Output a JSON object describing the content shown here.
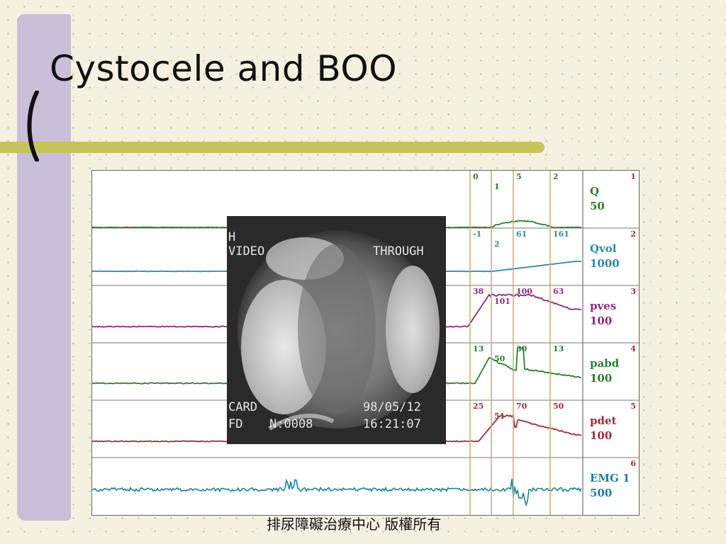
{
  "slide": {
    "title": "Cystocele and BOO",
    "footer": "排尿障礙治療中心 版權所有",
    "colors": {
      "background": "#f4f1e0",
      "accent_bar": "#c9bfd9",
      "title_rule": "#c6c45a"
    }
  },
  "video": {
    "top_left": "H",
    "mode_left": "VIDEO",
    "mode_right": "THROUGH",
    "card": "CARD",
    "fd": "FD",
    "counter": "N:0008",
    "date": "98/05/12",
    "time": "16:21:07"
  },
  "chart_data": {
    "type": "line",
    "title": "",
    "channels": [
      {
        "index": "1",
        "name": "Q",
        "scale": "50",
        "color": "#2e7d32",
        "markers": [
          "0",
          "1",
          "5",
          "2"
        ]
      },
      {
        "index": "2",
        "name": "Qvol",
        "scale": "1000",
        "color": "#2b8aa8",
        "markers": [
          "-1",
          "2",
          "61",
          "161"
        ]
      },
      {
        "index": "3",
        "name": "pves",
        "scale": "100",
        "color": "#8e2a7e",
        "markers": [
          "38",
          "101",
          "100",
          "63"
        ]
      },
      {
        "index": "4",
        "name": "pabd",
        "scale": "100",
        "color": "#2e7d32",
        "markers": [
          "13",
          "50",
          "30",
          "13"
        ]
      },
      {
        "index": "5",
        "name": "pdet",
        "scale": "100",
        "color": "#a02c3a",
        "markers": [
          "25",
          "51",
          "70",
          "50"
        ]
      },
      {
        "index": "6",
        "name": "EMG 1",
        "scale": "500",
        "color": "#1d7fa0",
        "markers": []
      }
    ],
    "marker_line_color": "#c8b46a",
    "grid": false
  }
}
